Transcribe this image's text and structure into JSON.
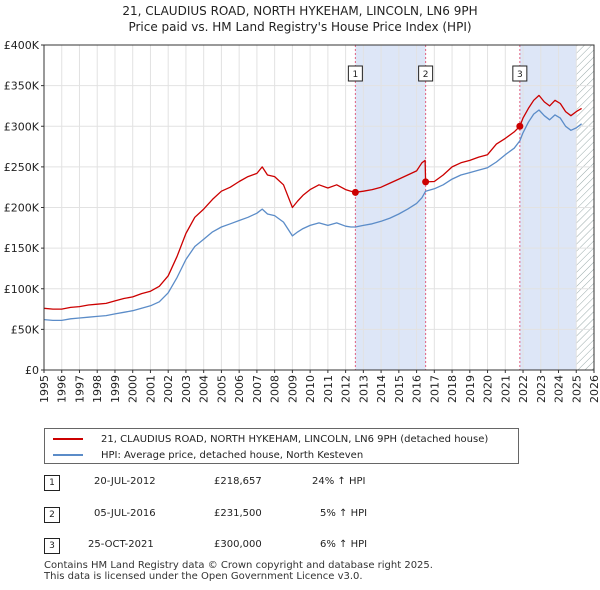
{
  "header": {
    "title_line1": "21, CLAUDIUS ROAD, NORTH HYKEHAM, LINCOLN, LN6 9PH",
    "title_line2": "Price paid vs. HM Land Registry's House Price Index (HPI)"
  },
  "colors": {
    "red": "#cc0000",
    "blue": "#5b8cc8",
    "shade": "#dde6f7",
    "vline": "#e06080"
  },
  "chart_data": {
    "type": "line",
    "title": "21, CLAUDIUS ROAD, NORTH HYKEHAM, LINCOLN, LN6 9PH — Price paid vs. HM Land Registry's House Price Index (HPI)",
    "xlabel": "",
    "ylabel": "",
    "xlim": [
      1995,
      2026
    ],
    "ylim": [
      0,
      400000
    ],
    "x_ticks": [
      1995,
      1996,
      1997,
      1998,
      1999,
      2000,
      2001,
      2002,
      2003,
      2004,
      2005,
      2006,
      2007,
      2008,
      2009,
      2010,
      2011,
      2012,
      2013,
      2014,
      2015,
      2016,
      2017,
      2018,
      2019,
      2020,
      2021,
      2022,
      2023,
      2024,
      2025,
      2026
    ],
    "y_ticks": [
      {
        "value": 0,
        "label": "£0"
      },
      {
        "value": 50000,
        "label": "£50K"
      },
      {
        "value": 100000,
        "label": "£100K"
      },
      {
        "value": 150000,
        "label": "£150K"
      },
      {
        "value": 200000,
        "label": "£200K"
      },
      {
        "value": 250000,
        "label": "£250K"
      },
      {
        "value": 300000,
        "label": "£300K"
      },
      {
        "value": 350000,
        "label": "£350K"
      },
      {
        "value": 400000,
        "label": "£400K"
      }
    ],
    "grid": true,
    "series": [
      {
        "name": "21, CLAUDIUS ROAD, NORTH HYKEHAM, LINCOLN, LN6 9PH (detached house)",
        "color": "#cc0000",
        "x": [
          1995.0,
          1995.5,
          1996.0,
          1996.5,
          1997.0,
          1997.5,
          1998.0,
          1998.5,
          1999.0,
          1999.5,
          2000.0,
          2000.5,
          2001.0,
          2001.5,
          2002.0,
          2002.5,
          2003.0,
          2003.5,
          2004.0,
          2004.5,
          2005.0,
          2005.5,
          2006.0,
          2006.5,
          2007.0,
          2007.3,
          2007.6,
          2008.0,
          2008.5,
          2009.0,
          2009.3,
          2009.6,
          2010.0,
          2010.5,
          2011.0,
          2011.5,
          2012.0,
          2012.3,
          2012.55,
          2013.0,
          2013.5,
          2014.0,
          2014.5,
          2015.0,
          2015.5,
          2016.0,
          2016.3,
          2016.48,
          2016.51,
          2017.0,
          2017.5,
          2018.0,
          2018.5,
          2019.0,
          2019.5,
          2020.0,
          2020.5,
          2021.0,
          2021.5,
          2021.82,
          2022.0,
          2022.3,
          2022.6,
          2022.9,
          2023.2,
          2023.5,
          2023.8,
          2024.1,
          2024.4,
          2024.7,
          2025.0,
          2025.3
        ],
        "values": [
          76000,
          75000,
          75000,
          77000,
          78000,
          80000,
          81000,
          82000,
          85000,
          88000,
          90000,
          94000,
          97000,
          103000,
          116000,
          140000,
          168000,
          188000,
          198000,
          210000,
          220000,
          225000,
          232000,
          238000,
          242000,
          250000,
          240000,
          238000,
          228000,
          200000,
          208000,
          215000,
          222000,
          228000,
          224000,
          228000,
          222000,
          220000,
          218657,
          220000,
          222000,
          225000,
          230000,
          235000,
          240000,
          245000,
          255000,
          258000,
          231500,
          232000,
          240000,
          250000,
          255000,
          258000,
          262000,
          265000,
          278000,
          285000,
          293000,
          300000,
          310000,
          322000,
          332000,
          338000,
          330000,
          325000,
          332000,
          328000,
          318000,
          313000,
          318000,
          322000
        ]
      },
      {
        "name": "HPI: Average price, detached house, North Kesteven",
        "color": "#5b8cc8",
        "x": [
          1995.0,
          1995.5,
          1996.0,
          1996.5,
          1997.0,
          1997.5,
          1998.0,
          1998.5,
          1999.0,
          1999.5,
          2000.0,
          2000.5,
          2001.0,
          2001.5,
          2002.0,
          2002.5,
          2003.0,
          2003.5,
          2004.0,
          2004.5,
          2005.0,
          2005.5,
          2006.0,
          2006.5,
          2007.0,
          2007.3,
          2007.6,
          2008.0,
          2008.5,
          2009.0,
          2009.3,
          2009.6,
          2010.0,
          2010.5,
          2011.0,
          2011.5,
          2012.0,
          2012.3,
          2012.55,
          2013.0,
          2013.5,
          2014.0,
          2014.5,
          2015.0,
          2015.5,
          2016.0,
          2016.3,
          2016.51,
          2017.0,
          2017.5,
          2018.0,
          2018.5,
          2019.0,
          2019.5,
          2020.0,
          2020.5,
          2021.0,
          2021.5,
          2021.82,
          2022.0,
          2022.3,
          2022.6,
          2022.9,
          2023.2,
          2023.5,
          2023.8,
          2024.1,
          2024.4,
          2024.7,
          2025.0,
          2025.3
        ],
        "values": [
          62000,
          61000,
          61000,
          63000,
          64000,
          65000,
          66000,
          67000,
          69000,
          71000,
          73000,
          76000,
          79000,
          84000,
          95000,
          114000,
          136000,
          152000,
          161000,
          170000,
          176000,
          180000,
          184000,
          188000,
          193000,
          198000,
          192000,
          190000,
          182000,
          165000,
          170000,
          174000,
          178000,
          181000,
          178000,
          181000,
          177000,
          176000,
          176000,
          178000,
          180000,
          183000,
          187000,
          192000,
          198000,
          205000,
          212000,
          220000,
          223000,
          228000,
          235000,
          240000,
          243000,
          246000,
          249000,
          256000,
          265000,
          273000,
          282000,
          292000,
          305000,
          315000,
          320000,
          313000,
          308000,
          314000,
          310000,
          300000,
          295000,
          298000,
          303000
        ]
      }
    ],
    "transactions": [
      {
        "id": "1",
        "x": 2012.55,
        "date": "20-JUL-2012",
        "price": "£218,657",
        "value": 218657,
        "hpi": "24% ↑ HPI"
      },
      {
        "id": "2",
        "x": 2016.51,
        "date": "05-JUL-2016",
        "price": "£231,500",
        "value": 231500,
        "hpi": "5% ↑ HPI"
      },
      {
        "id": "3",
        "x": 2021.82,
        "date": "25-OCT-2021",
        "price": "£300,000",
        "value": 300000,
        "hpi": "6% ↑ HPI"
      }
    ],
    "shaded_ranges": [
      [
        2012.55,
        2016.51
      ],
      [
        2021.82,
        2025.0
      ]
    ],
    "hatched_from": 2025.0
  },
  "legend": {
    "red_label": "21, CLAUDIUS ROAD, NORTH HYKEHAM, LINCOLN, LN6 9PH (detached house)",
    "blue_label": "HPI: Average price, detached house, North Kesteven"
  },
  "footer": {
    "line1": "Contains HM Land Registry data © Crown copyright and database right 2025.",
    "line2": "This data is licensed under the Open Government Licence v3.0."
  }
}
